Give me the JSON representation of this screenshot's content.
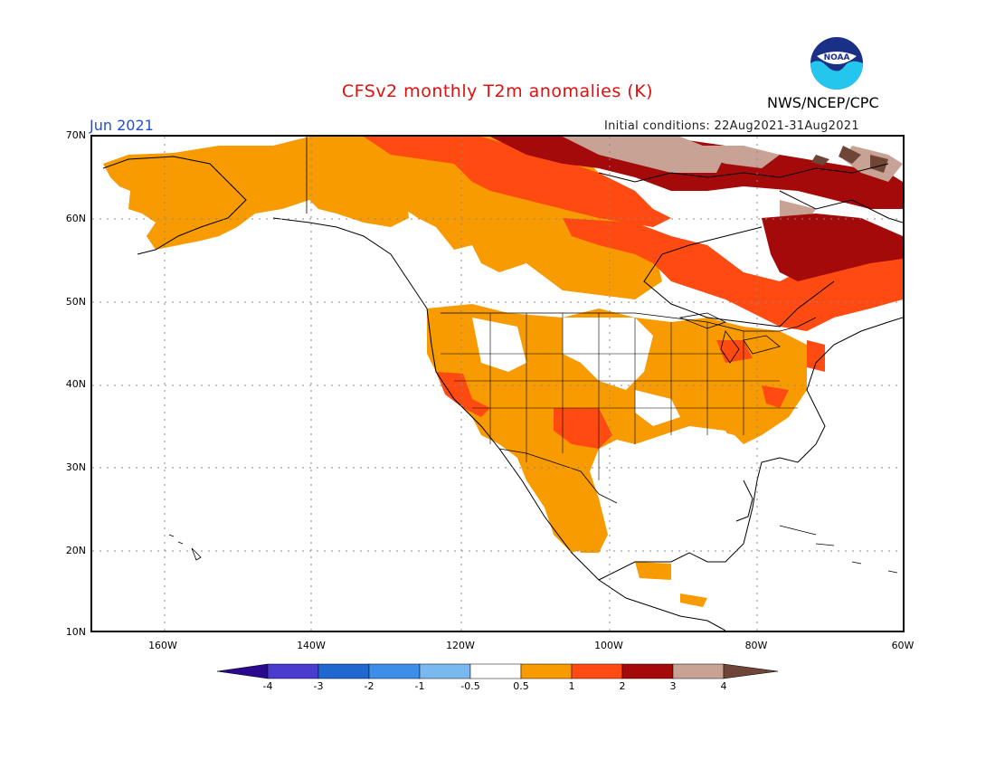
{
  "title": "CFSv2 monthly T2m anomalies (K)",
  "agency": "NWS/NCEP/CPC",
  "logo_text": "NOAA",
  "month_label": "Jun 2021",
  "initial_conditions": "Initial conditions: 22Aug2021-31Aug2021",
  "lat_labels": [
    {
      "id": "70",
      "text": "70N"
    },
    {
      "id": "60",
      "text": "60N"
    },
    {
      "id": "50",
      "text": "50N"
    },
    {
      "id": "40",
      "text": "40N"
    },
    {
      "id": "30",
      "text": "30N"
    },
    {
      "id": "20",
      "text": "20N"
    },
    {
      "id": "10",
      "text": "10N"
    }
  ],
  "lon_labels": [
    {
      "id": "160",
      "text": "160W"
    },
    {
      "id": "140",
      "text": "140W"
    },
    {
      "id": "120",
      "text": "120W"
    },
    {
      "id": "100",
      "text": "100W"
    },
    {
      "id": "80",
      "text": "80W"
    },
    {
      "id": "60",
      "text": "60W"
    }
  ],
  "colorbar": {
    "labels": [
      "-4",
      "-3",
      "-2",
      "-1",
      "-0.5",
      "0.5",
      "1",
      "2",
      "3",
      "4"
    ],
    "colors": {
      "below_-4": "#2a0a8c",
      "m4_m3": "#4a3ccc",
      "m3_m2": "#1f68d0",
      "m2_m1": "#3c8ee8",
      "m1_m05": "#7ab8f0",
      "m05_05": "#ffffff",
      "05_1": "#f79b00",
      "1_2": "#ff4a12",
      "2_3": "#a50a0a",
      "3_4": "#c7a295",
      "above_4": "#6e4536"
    }
  }
}
